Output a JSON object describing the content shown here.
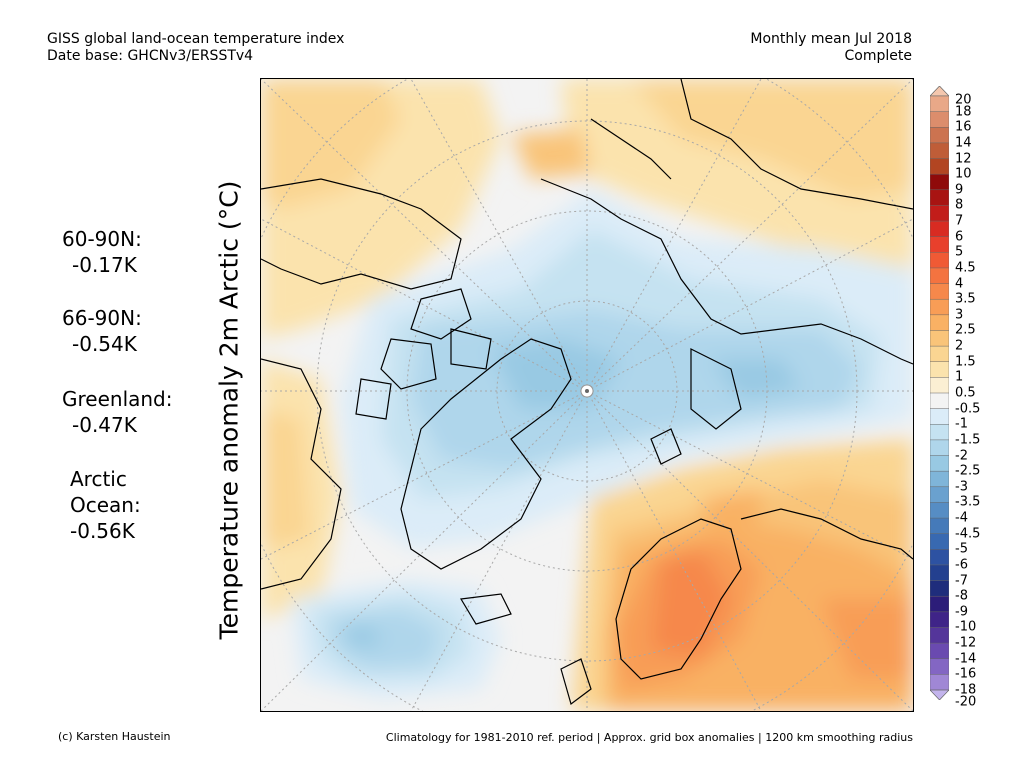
{
  "header": {
    "title_line1": "GISS global land-ocean temperature index",
    "title_line2": "Date base: GHCNv3/ERSSTv4",
    "period_line1": "Monthly mean Jul 2018",
    "period_line2": "Complete"
  },
  "axis_label": "Temperature anomaly 2m Arctic (°C)",
  "stats": [
    {
      "label": "60-90N:",
      "value": "-0.17K"
    },
    {
      "label": "66-90N:",
      "value": "-0.54K"
    },
    {
      "label": "Greenland:",
      "value": "-0.47K"
    },
    {
      "label": "Arctic",
      "label2": "Ocean:",
      "value": "-0.56K"
    }
  ],
  "colorbar": {
    "levels": [
      "20",
      "18",
      "16",
      "14",
      "12",
      "10",
      "9",
      "8",
      "7",
      "6",
      "5",
      "4.5",
      "4",
      "3.5",
      "3",
      "2.5",
      "2",
      "1.5",
      "1",
      "0.5",
      "-0.5",
      "-1",
      "-1.5",
      "-2",
      "-2.5",
      "-3",
      "-3.5",
      "-4",
      "-4.5",
      "-5",
      "-6",
      "-7",
      "-8",
      "-9",
      "-10",
      "-12",
      "-14",
      "-16",
      "-18",
      "-20"
    ],
    "colors": [
      "#f4c7ae",
      "#e9a888",
      "#dc8d6c",
      "#cc7350",
      "#bf5d38",
      "#b24522",
      "#8f0a0a",
      "#a81412",
      "#c21d1a",
      "#d82b22",
      "#e8402c",
      "#f05a35",
      "#f47340",
      "#f6884b",
      "#f89d56",
      "#f9b164",
      "#f9c479",
      "#fad592",
      "#fbe3ad",
      "#fbefd3",
      "#f3f3f3",
      "#dbecf8",
      "#c5e2f1",
      "#afd6eb",
      "#98c9e3",
      "#7fb5d9",
      "#6aa1cf",
      "#568dc4",
      "#457ab9",
      "#3869b1",
      "#2d52a2",
      "#23408f",
      "#1f2d7c",
      "#2c1d79",
      "#3f2488",
      "#54359a",
      "#6a4ab0",
      "#8366c3",
      "#a087d5",
      "#c3b4ec"
    ]
  },
  "footer": {
    "credit": "(c) Karsten Haustein",
    "note": "Climatology for 1981-2010 ref. period | Approx. grid box anomalies | 1200 km smoothing radius"
  }
}
